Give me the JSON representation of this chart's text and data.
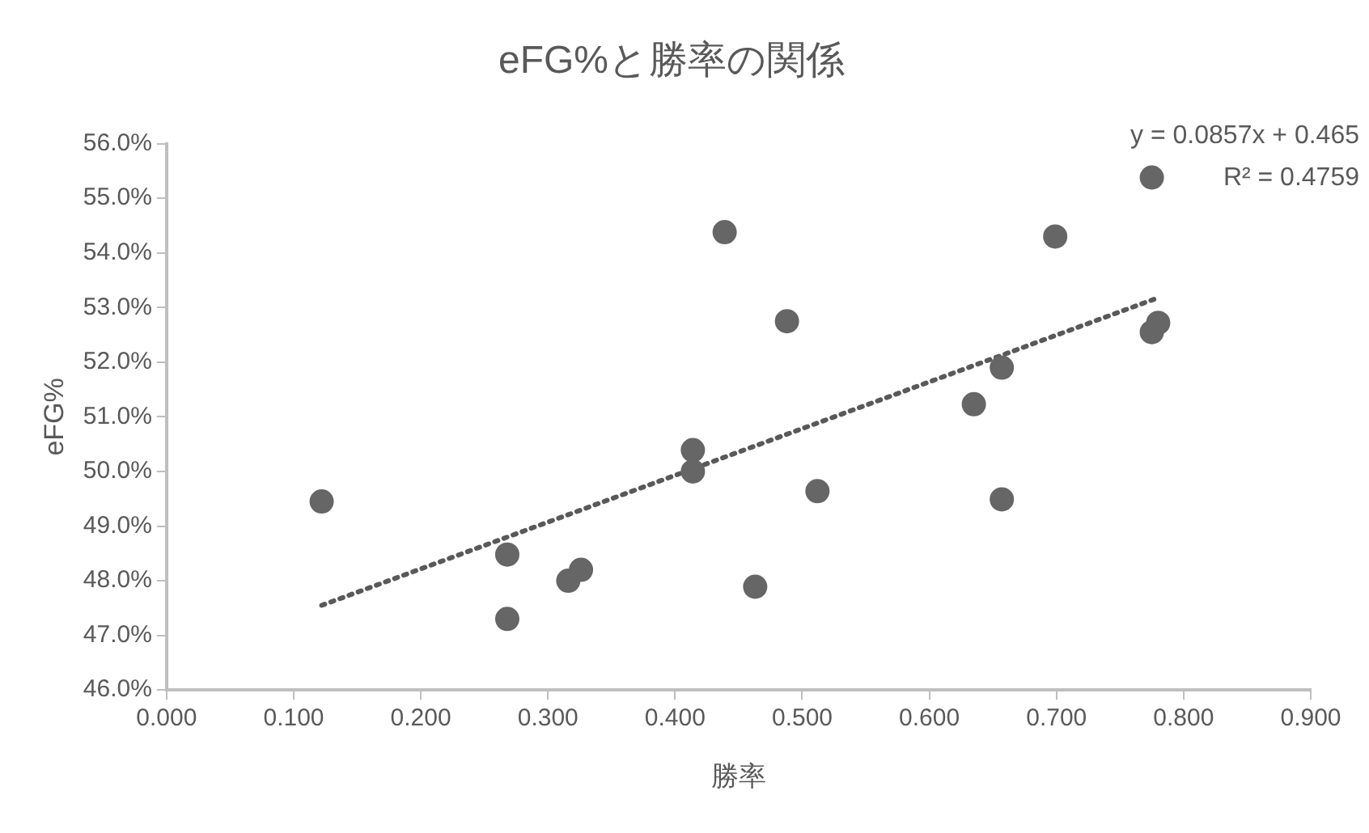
{
  "chart_data": {
    "type": "scatter",
    "title": "eFG%と勝率の関係",
    "xlabel": "勝率",
    "ylabel": "eFG%",
    "series": [
      {
        "color": "#666666",
        "marker": "circle",
        "x": [
          0.122,
          0.268,
          0.268,
          0.316,
          0.326,
          0.414,
          0.414,
          0.439,
          0.463,
          0.488,
          0.512,
          0.635,
          0.657,
          0.657,
          0.699,
          0.775,
          0.775,
          0.78
        ],
        "values": [
          49.45,
          48.48,
          47.3,
          48.0,
          48.2,
          50.39,
          50.0,
          54.38,
          47.89,
          52.75,
          49.64,
          51.23,
          51.9,
          49.49,
          54.3,
          55.38,
          52.55,
          52.72
        ]
      },
      {
        "type": "line",
        "color": "#595959",
        "line_style": "dotted",
        "marker": "none",
        "x": [
          0.122,
          0.78
        ],
        "values": [
          47.55,
          53.18
        ]
      }
    ],
    "xlim": [
      0,
      0.9
    ],
    "xticks": [
      {
        "value": 0,
        "label": "0.000"
      },
      {
        "value": 0.1,
        "label": "0.100"
      },
      {
        "value": 0.2,
        "label": "0.200"
      },
      {
        "value": 0.3,
        "label": "0.300"
      },
      {
        "value": 0.4,
        "label": "0.400"
      },
      {
        "value": 0.5,
        "label": "0.500"
      },
      {
        "value": 0.6,
        "label": "0.600"
      },
      {
        "value": 0.7,
        "label": "0.700"
      },
      {
        "value": 0.8,
        "label": "0.800"
      },
      {
        "value": 0.9,
        "label": "0.900"
      }
    ],
    "ylim": [
      46,
      56
    ],
    "yticks": [
      {
        "value": 46,
        "label": "46.0%"
      },
      {
        "value": 47,
        "label": "47.0%"
      },
      {
        "value": 48,
        "label": "48.0%"
      },
      {
        "value": 49,
        "label": "49.0%"
      },
      {
        "value": 50,
        "label": "50.0%"
      },
      {
        "value": 51,
        "label": "51.0%"
      },
      {
        "value": 52,
        "label": "52.0%"
      },
      {
        "value": 53,
        "label": "53.0%"
      },
      {
        "value": 54,
        "label": "54.0%"
      },
      {
        "value": 55,
        "label": "55.0%"
      },
      {
        "value": 56,
        "label": "56.0%"
      }
    ],
    "annotations": [
      "y = 0.0857x + 0.465",
      "R² = 0.4759"
    ],
    "grid": false,
    "legend": false
  }
}
